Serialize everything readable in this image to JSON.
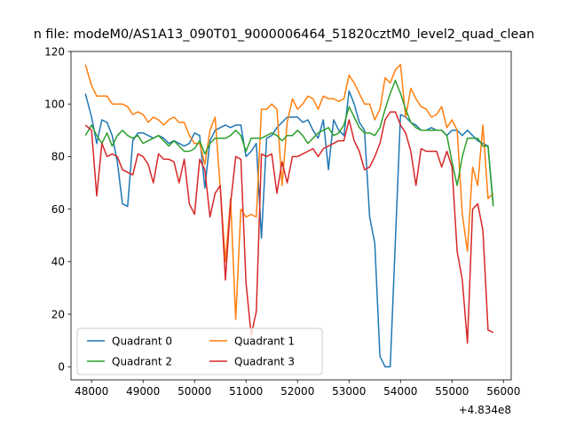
{
  "chart_data": {
    "type": "line",
    "title": "n file: modeM0/AS1A13_090T01_9000006464_51820cztM0_level2_quad_clean",
    "xlabel": "",
    "ylabel": "",
    "x_offset_label": "+4.834e8",
    "xlim": [
      47600,
      56150
    ],
    "ylim": [
      -5,
      120
    ],
    "x_ticks": [
      48000,
      49000,
      50000,
      51000,
      52000,
      53000,
      54000,
      55000,
      56000
    ],
    "y_ticks": [
      0,
      20,
      40,
      60,
      80,
      100,
      120
    ],
    "grid": false,
    "legend": {
      "placement": "lower-left",
      "columns": 2
    },
    "x": [
      47880,
      48000,
      48100,
      48200,
      48300,
      48400,
      48500,
      48600,
      48700,
      48800,
      48900,
      49000,
      49100,
      49200,
      49300,
      49400,
      49500,
      49600,
      49700,
      49800,
      49900,
      50000,
      50100,
      50200,
      50300,
      50400,
      50500,
      50600,
      50700,
      50800,
      50900,
      51000,
      51100,
      51200,
      51300,
      51400,
      51500,
      51600,
      51700,
      51800,
      51900,
      52000,
      52100,
      52200,
      52300,
      52400,
      52500,
      52600,
      52700,
      52800,
      52900,
      53000,
      53100,
      53200,
      53300,
      53400,
      53500,
      53600,
      53700,
      53800,
      53900,
      54000,
      54100,
      54200,
      54300,
      54400,
      54500,
      54600,
      54700,
      54800,
      54900,
      55000,
      55100,
      55200,
      55300,
      55400,
      55500,
      55600,
      55700,
      55800
    ],
    "series": [
      {
        "name": "Quadrant 0",
        "color": "#1f77b4",
        "values": [
          104,
          95,
          85,
          94,
          93,
          88,
          78,
          62,
          61,
          86,
          89,
          89,
          88,
          87,
          88,
          87,
          85,
          86,
          85,
          84,
          85,
          89,
          88,
          68,
          86,
          90,
          91,
          92,
          91,
          92,
          92,
          80,
          82,
          85,
          49,
          87,
          88,
          91,
          93,
          95,
          95,
          95,
          93,
          94,
          90,
          87,
          94,
          75,
          94,
          90,
          88,
          105,
          100,
          93,
          90,
          57,
          47,
          4,
          0,
          0,
          48,
          96,
          95,
          93,
          92,
          90,
          90,
          91,
          90,
          90,
          88,
          90,
          90,
          88,
          90,
          88,
          86,
          85,
          84,
          62
        ]
      },
      {
        "name": "Quadrant 1",
        "color": "#ff7f0e",
        "values": [
          115,
          107,
          103,
          103,
          103,
          100,
          100,
          100,
          99,
          96,
          97,
          96,
          93,
          95,
          94,
          92,
          94,
          95,
          93,
          93,
          88,
          85,
          85,
          77,
          90,
          95,
          68,
          40,
          64,
          18,
          60,
          57,
          58,
          57,
          98,
          98,
          100,
          98,
          69,
          93,
          102,
          98,
          100,
          103,
          102,
          98,
          103,
          102,
          102,
          101,
          102,
          111,
          108,
          104,
          100,
          100,
          94,
          98,
          110,
          108,
          113,
          115,
          95,
          106,
          102,
          99,
          98,
          95,
          96,
          99,
          91,
          94,
          90,
          58,
          44,
          76,
          69,
          92,
          64,
          66
        ]
      },
      {
        "name": "Quadrant 2",
        "color": "#2ca02c",
        "values": [
          88,
          92,
          88,
          85,
          89,
          84,
          88,
          90,
          88,
          87,
          88,
          85,
          86,
          87,
          88,
          86,
          84,
          86,
          84,
          82,
          82,
          83,
          86,
          81,
          85,
          87,
          87,
          87,
          88,
          90,
          88,
          82,
          87,
          87,
          87,
          88,
          89,
          88,
          86,
          88,
          88,
          90,
          88,
          85,
          87,
          89,
          90,
          91,
          88,
          89,
          92,
          99,
          95,
          91,
          89,
          89,
          88,
          91,
          98,
          104,
          109,
          104,
          98,
          93,
          91,
          90,
          90,
          90,
          90,
          90,
          88,
          78,
          69,
          80,
          87,
          87,
          87,
          84,
          84,
          61
        ]
      },
      {
        "name": "Quadrant 3",
        "color": "#d62728",
        "values": [
          92,
          90,
          65,
          85,
          80,
          81,
          80,
          75,
          74,
          73,
          81,
          80,
          77,
          70,
          81,
          79,
          79,
          78,
          70,
          79,
          62,
          58,
          79,
          75,
          57,
          66,
          69,
          33,
          62,
          80,
          79,
          32,
          12,
          21,
          81,
          80,
          81,
          66,
          78,
          70,
          80,
          80,
          81,
          82,
          83,
          80,
          83,
          84,
          85,
          86,
          86,
          94,
          86,
          82,
          75,
          76,
          80,
          85,
          94,
          97,
          97,
          92,
          89,
          82,
          69,
          83,
          82,
          82,
          82,
          76,
          82,
          76,
          44,
          33,
          9,
          60,
          62,
          52,
          14,
          13
        ]
      }
    ]
  }
}
